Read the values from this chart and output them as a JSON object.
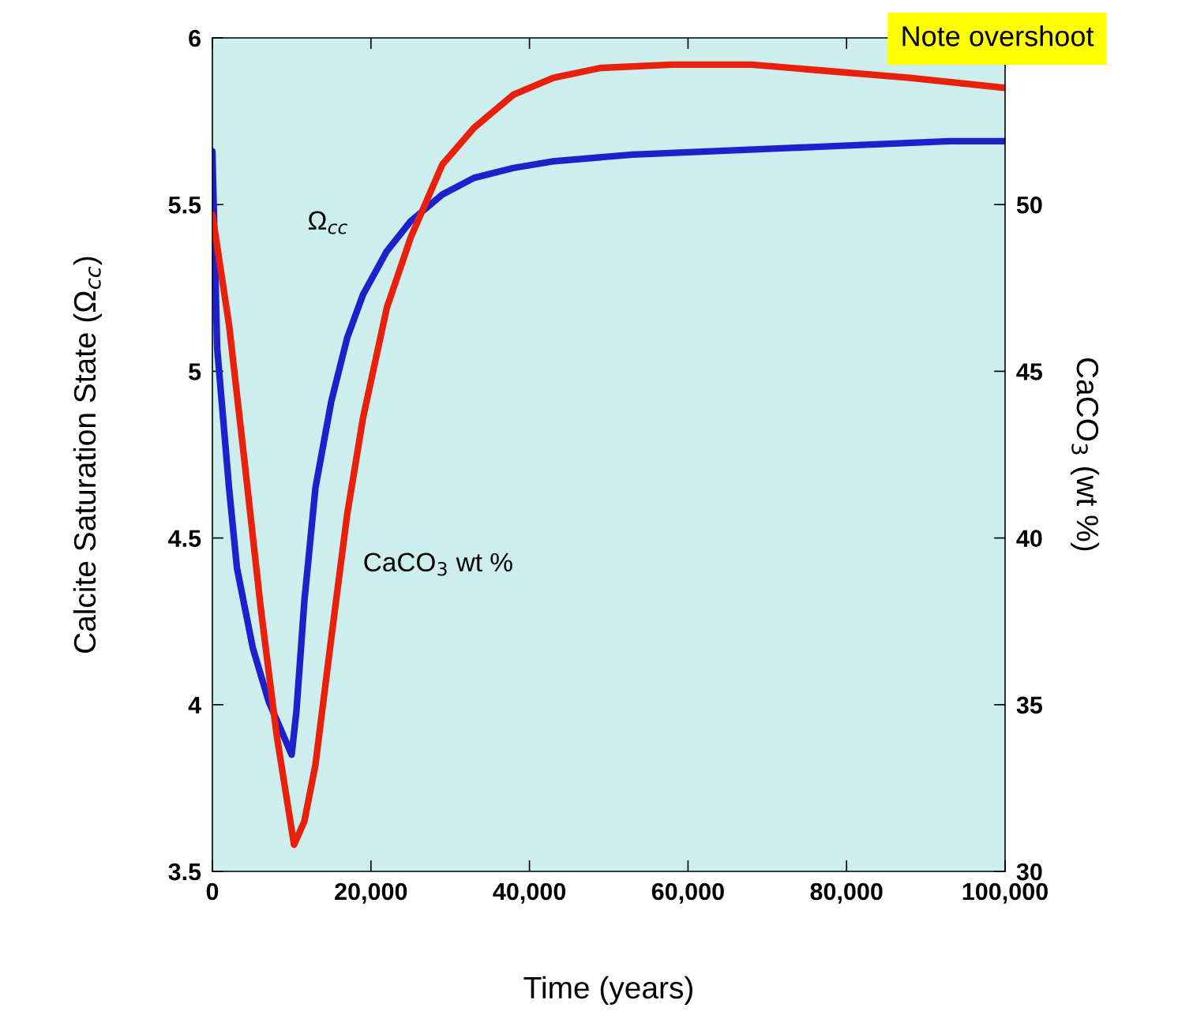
{
  "chart_data": {
    "type": "line",
    "xlabel": "Time (years)",
    "ylabel": "Calcite Saturation State (Ω$_{cc}$)",
    "y2label": "CaCO$_{3}$ (wt %)",
    "annotations": [
      "Note overshoot"
    ],
    "xlim": [
      0,
      100000
    ],
    "xticks": [
      {
        "value": 0,
        "label": "0"
      },
      {
        "value": 20000,
        "label": "20,000"
      },
      {
        "value": 40000,
        "label": "40,000"
      },
      {
        "value": 60000,
        "label": "60,000"
      },
      {
        "value": 80000,
        "label": "80,000"
      },
      {
        "value": 100000,
        "label": "100,000"
      }
    ],
    "ylim": [
      3.5,
      6
    ],
    "yticks": [
      3.5,
      4,
      4.5,
      5,
      5.5,
      6
    ],
    "y2lim": [
      30,
      55
    ],
    "y2ticks": [
      30,
      35,
      40,
      45,
      50
    ],
    "grid": false,
    "legend": false,
    "marker": "none",
    "line_style": "solid",
    "series": [
      {
        "name": "Ω$_{cc}$",
        "color": "#1f1fcc",
        "x": [
          0,
          600,
          1100,
          2100,
          3100,
          5100,
          7100,
          9100,
          10000,
          10600,
          11600,
          13000,
          15000,
          17000,
          19000,
          22000,
          25000,
          29000,
          33000,
          38000,
          43000,
          53000,
          63000,
          73000,
          83000,
          93000,
          100000
        ],
        "values": [
          5.66,
          5.07,
          4.93,
          4.65,
          4.41,
          4.17,
          4.01,
          3.9,
          3.85,
          3.98,
          4.31,
          4.65,
          4.91,
          5.1,
          5.23,
          5.36,
          5.45,
          5.53,
          5.58,
          5.61,
          5.63,
          5.65,
          5.66,
          5.67,
          5.68,
          5.69,
          5.69
        ]
      },
      {
        "name": "CaCO$_{3}$ wt %",
        "color": "#e8200c",
        "axis": "y2",
        "x": [
          0,
          2100,
          4100,
          6100,
          8100,
          10300,
          11600,
          13000,
          15000,
          17000,
          19000,
          22000,
          25000,
          29000,
          33000,
          38000,
          43000,
          49000,
          58000,
          68000,
          78000,
          88000,
          100000
        ],
        "values": [
          49.7,
          46.4,
          42.2,
          37.9,
          34.1,
          30.8,
          31.5,
          33.2,
          37.0,
          40.7,
          43.6,
          46.9,
          49.0,
          51.2,
          52.3,
          53.3,
          53.8,
          54.1,
          54.2,
          54.2,
          54.0,
          53.8,
          53.5
        ]
      }
    ]
  }
}
